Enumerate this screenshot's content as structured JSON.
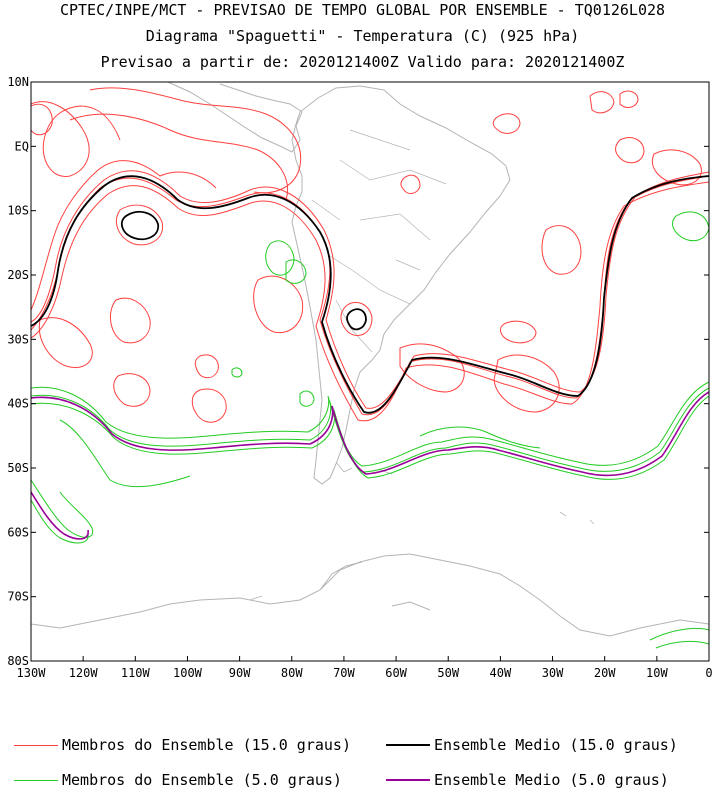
{
  "titles": {
    "line1": "CPTEC/INPE/MCT - PREVISAO DE TEMPO GLOBAL POR ENSEMBLE - TQ0126L028",
    "line2": "Diagrama \"Spaguetti\" - Temperatura (C) (925 hPa)",
    "line3": "Previsao a partir de: 2020121400Z  Valido para: 2020121400Z"
  },
  "map": {
    "lat_labels": [
      "10N",
      "EQ",
      "10S",
      "20S",
      "30S",
      "40S",
      "50S",
      "60S",
      "70S",
      "80S"
    ],
    "lat_values": [
      10,
      0,
      -10,
      -20,
      -30,
      -40,
      -50,
      -60,
      -70,
      -80
    ],
    "lon_labels": [
      "130W",
      "120W",
      "110W",
      "100W",
      "90W",
      "80W",
      "70W",
      "60W",
      "50W",
      "40W",
      "30W",
      "20W",
      "10W",
      "0"
    ],
    "lon_values": [
      -130,
      -120,
      -110,
      -100,
      -90,
      -80,
      -70,
      -60,
      -50,
      -40,
      -30,
      -20,
      -10,
      0
    ],
    "lon_range": [
      -130,
      0
    ],
    "lat_range": [
      -80,
      10
    ]
  },
  "legend": {
    "members_15": {
      "label": "Membros do Ensemble (15.0 graus)",
      "color": "#ff4040"
    },
    "mean_15": {
      "label": "Ensemble Medio (15.0 graus)",
      "color": "#000000"
    },
    "members_5": {
      "label": "Membros do Ensemble (5.0 graus)",
      "color": "#22cc22"
    },
    "mean_5": {
      "label": "Ensemble Medio (5.0 graus)",
      "color": "#990099"
    }
  },
  "colors": {
    "coast": "#b4b4b4",
    "frame": "#000000"
  }
}
